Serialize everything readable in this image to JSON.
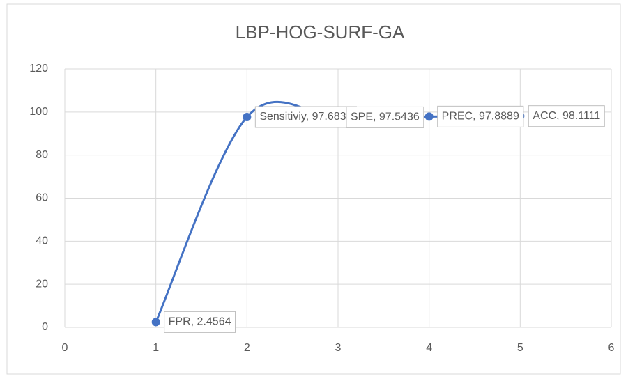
{
  "chart_data": {
    "type": "scatter",
    "title": "LBP-HOG-SURF-GA",
    "x": [
      1,
      2,
      3,
      4,
      5
    ],
    "values": [
      2.4564,
      97.6832,
      97.5436,
      97.8889,
      98.1111
    ],
    "value_labels": [
      "FPR, 2.4564",
      "Sensitiviy, 97.6832",
      "SPE, 97.5436",
      "PREC, 97.8889",
      "ACC, 98.1111"
    ],
    "color": "#4472c4",
    "smooth": true,
    "grid": true,
    "xlim": [
      0,
      6
    ],
    "xticks": [
      0,
      1,
      2,
      3,
      4,
      5,
      6
    ],
    "ylim": [
      0,
      120
    ],
    "yticks": [
      0,
      20,
      40,
      60,
      80,
      100,
      120
    ]
  }
}
